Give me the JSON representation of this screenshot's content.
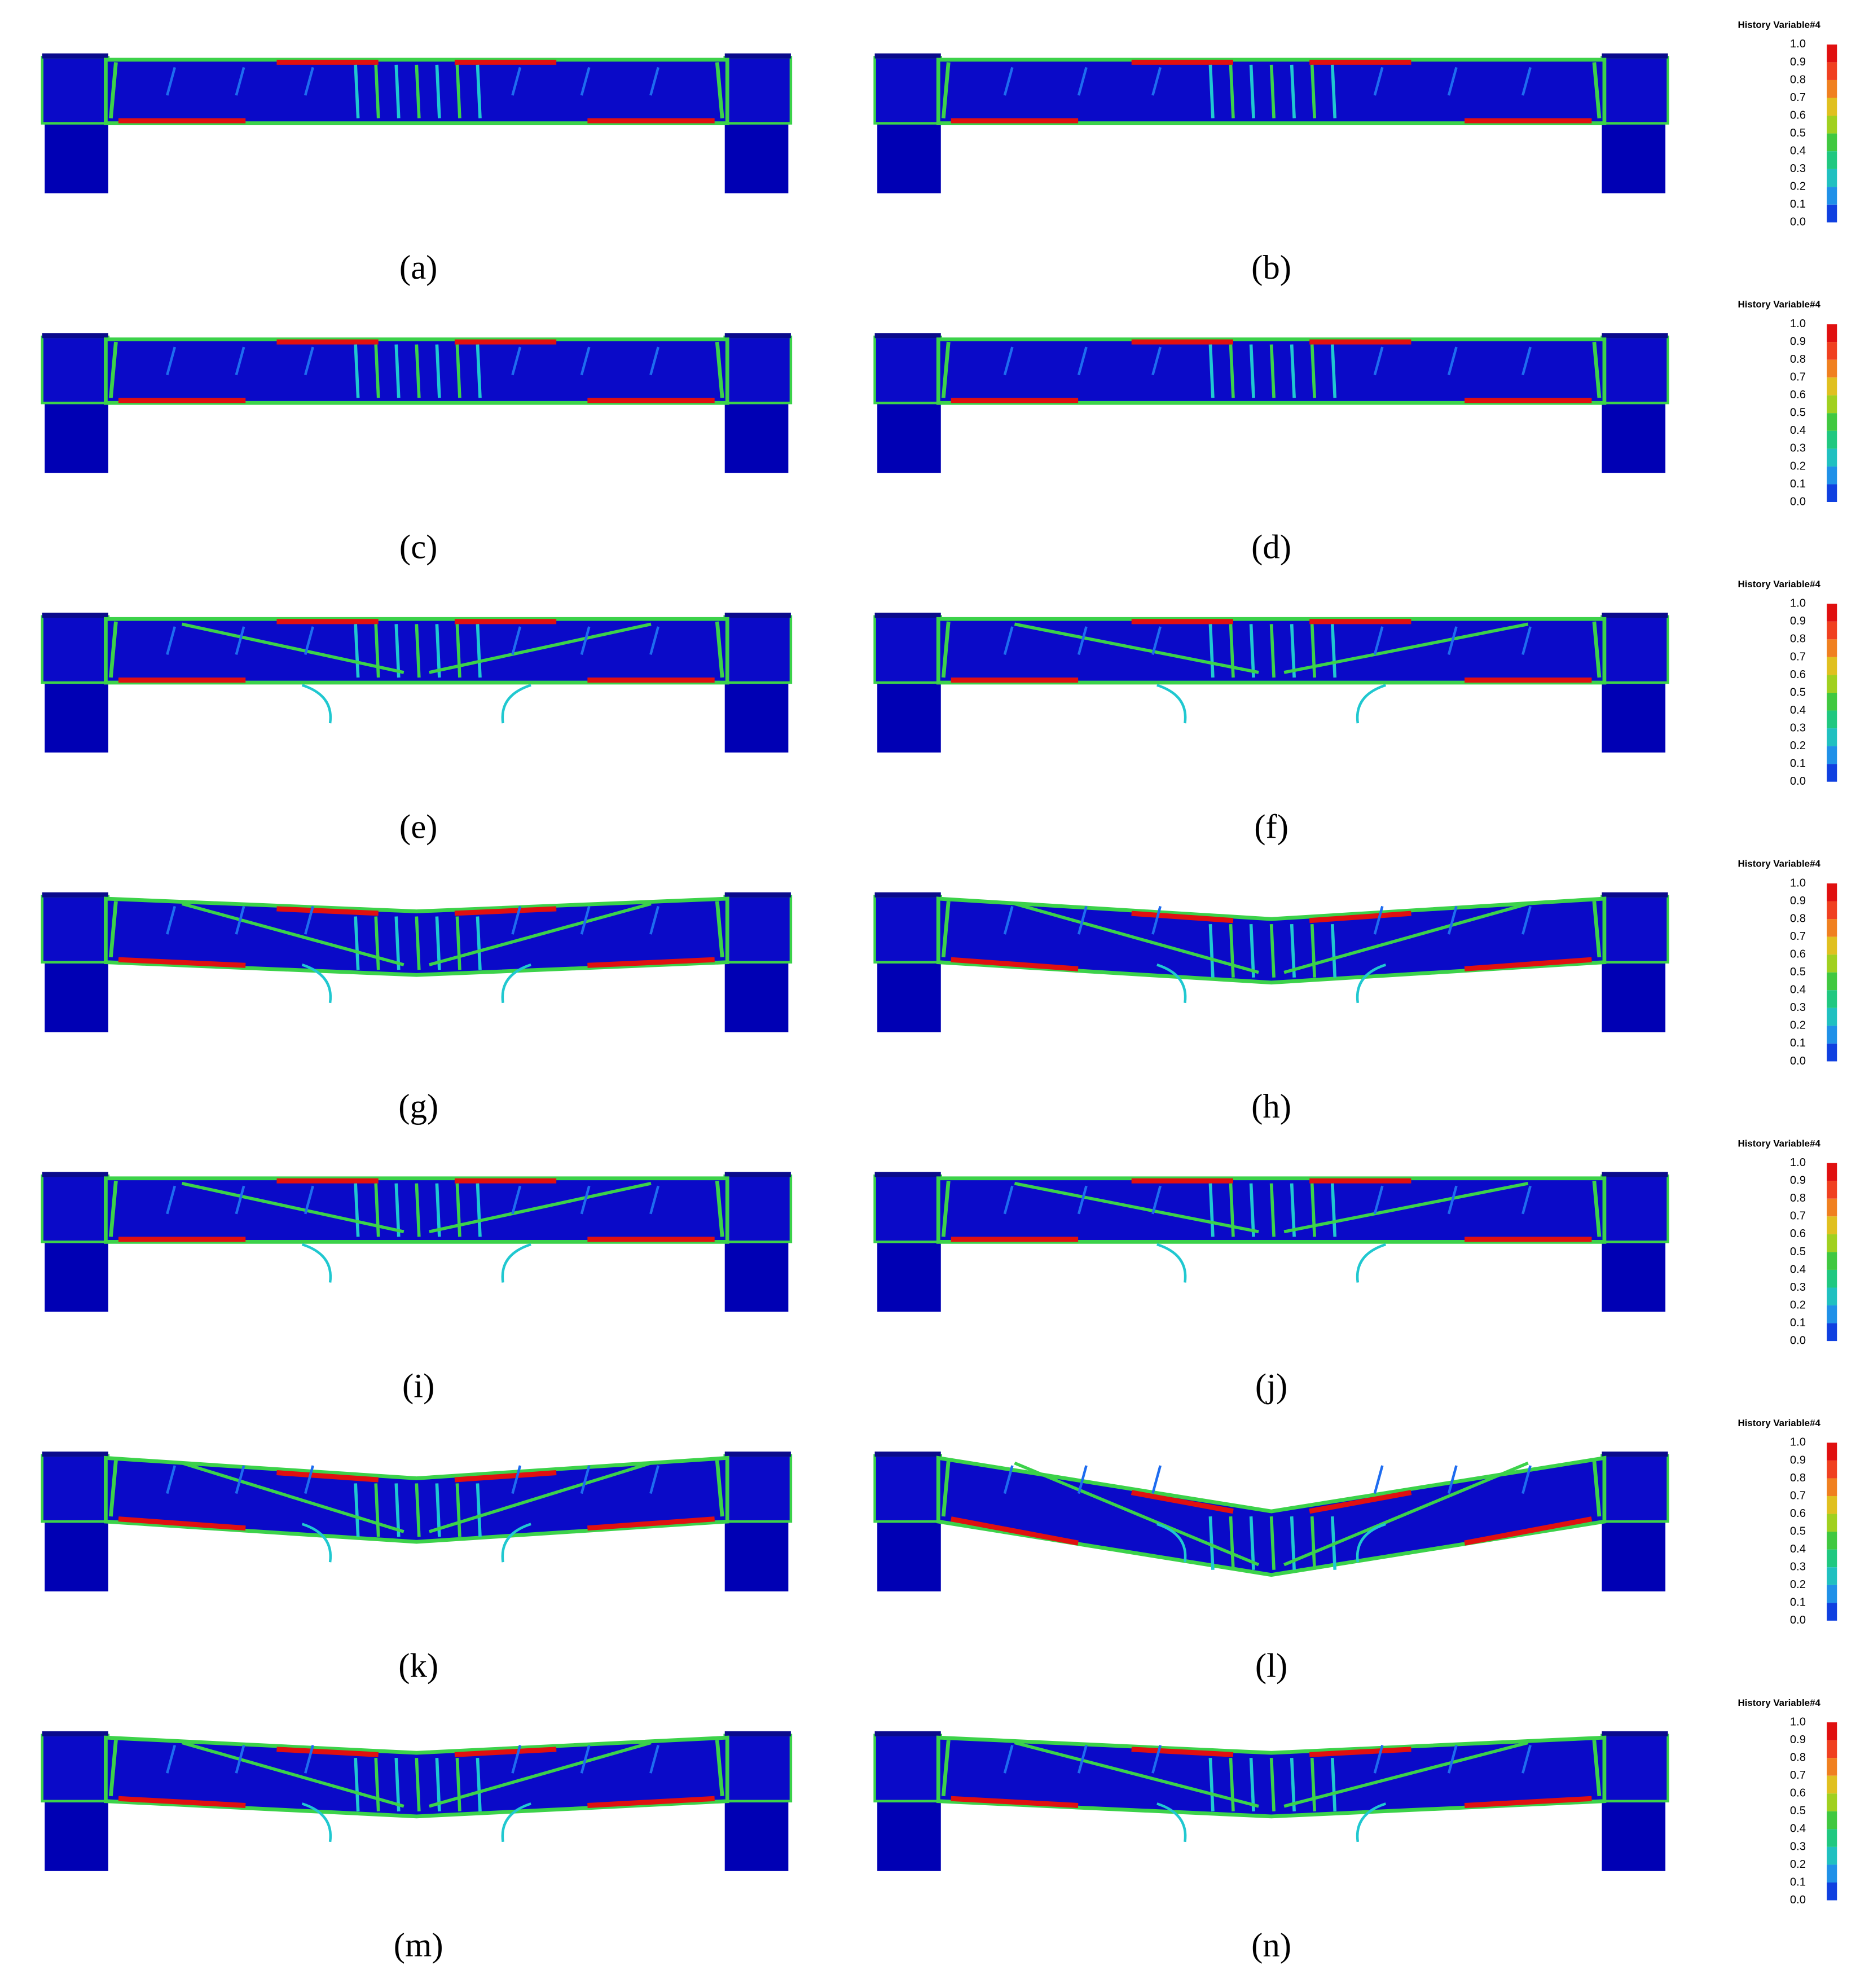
{
  "panels": [
    {
      "label": "(a)"
    },
    {
      "label": "(b)"
    },
    {
      "label": "(c)"
    },
    {
      "label": "(d)"
    },
    {
      "label": "(e)"
    },
    {
      "label": "(f)"
    },
    {
      "label": "(g)"
    },
    {
      "label": "(h)"
    },
    {
      "label": "(i)"
    },
    {
      "label": "(j)"
    },
    {
      "label": "(k)"
    },
    {
      "label": "(l)"
    },
    {
      "label": "(m)"
    },
    {
      "label": "(n)"
    }
  ],
  "legends": [
    {
      "title": "History Variable#4",
      "ticks": [
        "1.0",
        "0.9",
        "0.8",
        "0.7",
        "0.6",
        "0.5",
        "0.4",
        "0.3",
        "0.2",
        "0.1",
        "0.0"
      ]
    },
    {
      "title": "History Variable#4",
      "ticks": [
        "1.0",
        "0.9",
        "0.8",
        "0.7",
        "0.6",
        "0.5",
        "0.4",
        "0.3",
        "0.2",
        "0.1",
        "0.0"
      ]
    },
    {
      "title": "History Variable#4",
      "ticks": [
        "1.0",
        "0.9",
        "0.8",
        "0.7",
        "0.6",
        "0.5",
        "0.4",
        "0.3",
        "0.2",
        "0.1",
        "0.0"
      ]
    },
    {
      "title": "History Variable#4",
      "ticks": [
        "1.0",
        "0.9",
        "0.8",
        "0.7",
        "0.6",
        "0.5",
        "0.4",
        "0.3",
        "0.2",
        "0.1",
        "0.0"
      ]
    },
    {
      "title": "History Variable#4",
      "ticks": [
        "1.0",
        "0.9",
        "0.8",
        "0.7",
        "0.6",
        "0.5",
        "0.4",
        "0.3",
        "0.2",
        "0.1",
        "0.0"
      ]
    },
    {
      "title": "History Variable#4",
      "ticks": [
        "1.0",
        "0.9",
        "0.8",
        "0.7",
        "0.6",
        "0.5",
        "0.4",
        "0.3",
        "0.2",
        "0.1",
        "0.0"
      ]
    },
    {
      "title": "History Variable#4",
      "ticks": [
        "1.0",
        "0.9",
        "0.8",
        "0.7",
        "0.6",
        "0.5",
        "0.4",
        "0.3",
        "0.2",
        "0.1",
        "0.0"
      ]
    }
  ]
}
